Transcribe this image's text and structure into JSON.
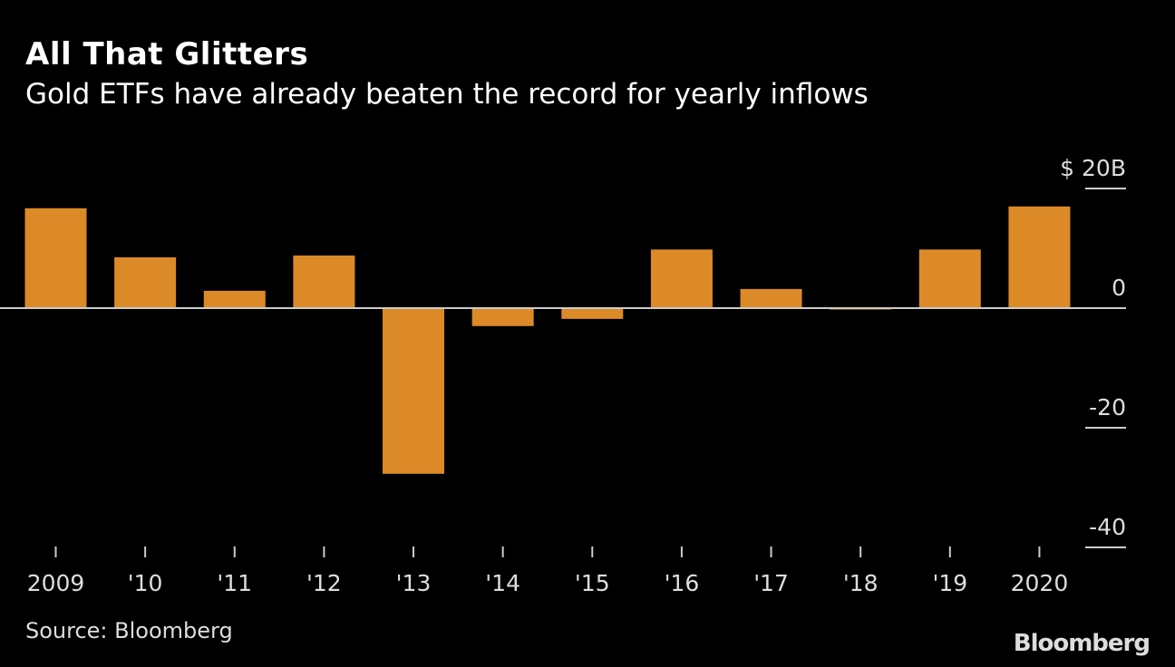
{
  "chart_data": {
    "type": "bar",
    "title": "All That Glitters",
    "subtitle": "Gold ETFs have already beaten the record for yearly inflows",
    "categories": [
      "2009",
      "'10",
      "'11",
      "'12",
      "'13",
      "'14",
      "'15",
      "'16",
      "'17",
      "'18",
      "'19",
      "2020"
    ],
    "values": [
      16.7,
      8.5,
      2.9,
      8.8,
      -27.7,
      -3.0,
      -1.8,
      9.8,
      3.2,
      -0.2,
      9.8,
      17.0
    ],
    "y_ticks": [
      {
        "value": 20,
        "label": "$ 20B"
      },
      {
        "value": 0,
        "label": "0"
      },
      {
        "value": -20,
        "label": "-20"
      },
      {
        "value": -40,
        "label": "-40"
      }
    ],
    "ylim": [
      -40,
      20
    ],
    "xlabel": "",
    "ylabel": "",
    "grid": false,
    "bar_color": "#dc8a27",
    "background": "#000000"
  },
  "footer": {
    "source": "Source: Bloomberg",
    "logo": "Bloomberg"
  }
}
